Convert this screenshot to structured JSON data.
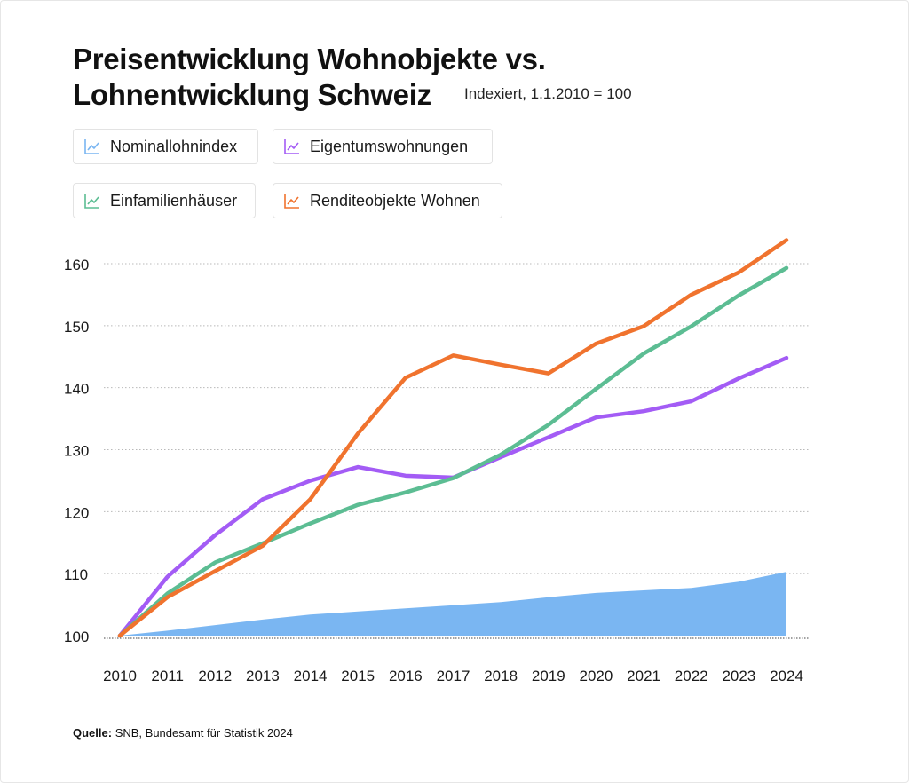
{
  "title_line1": "Preisentwicklung Wohnobjekte vs.",
  "title_line2": "Lohnentwicklung Schweiz",
  "subtitle": "Indexiert, 1.1.2010 = 100",
  "legend": [
    {
      "label": "Nominallohnindex",
      "color": "#7ab6f2",
      "icon": "line-chart-icon"
    },
    {
      "label": "Eigentumswohnungen",
      "color": "#a35cf5",
      "icon": "line-chart-icon"
    },
    {
      "label": "Einfamilienhäuser",
      "color": "#5cbd93",
      "icon": "line-chart-icon"
    },
    {
      "label": "Renditeobjekte Wohnen",
      "color": "#f0732e",
      "icon": "line-chart-icon"
    }
  ],
  "source_label": "Quelle:",
  "source_text": "SNB, Bundesamt für Statistik 2024",
  "chart_data": {
    "type": "line",
    "title": "Preisentwicklung Wohnobjekte vs. Lohnentwicklung Schweiz",
    "subtitle": "Indexiert, 1.1.2010 = 100",
    "xlabel": "",
    "ylabel": "",
    "x": [
      "2010",
      "2011",
      "2012",
      "2013",
      "2014",
      "2015",
      "2016",
      "2017",
      "2018",
      "2019",
      "2020",
      "2021",
      "2022",
      "2023",
      "2024"
    ],
    "ylim": [
      100,
      160
    ],
    "yticks": [
      100,
      110,
      120,
      130,
      140,
      150,
      160
    ],
    "grid": "horizontal-dotted",
    "legend_position": "top-left",
    "series": [
      {
        "name": "Nominallohnindex",
        "render": "area",
        "color": "#7ab6f2",
        "values": [
          100,
          100.8,
          101.7,
          102.6,
          103.4,
          103.9,
          104.4,
          104.9,
          105.4,
          106.2,
          106.9,
          107.3,
          107.7,
          108.7,
          110.3
        ]
      },
      {
        "name": "Eigentumswohnungen",
        "render": "line",
        "color": "#a35cf5",
        "values": [
          100,
          109.5,
          116.2,
          122.0,
          125.0,
          127.2,
          125.8,
          125.5,
          128.8,
          132.0,
          135.2,
          136.2,
          137.8,
          141.5,
          144.8
        ]
      },
      {
        "name": "Einfamilienhäuser",
        "render": "line",
        "color": "#5cbd93",
        "values": [
          100,
          106.8,
          111.8,
          114.9,
          118.1,
          121.1,
          123.1,
          125.4,
          129.2,
          134.0,
          139.8,
          145.5,
          149.9,
          154.9,
          159.3
        ]
      },
      {
        "name": "Renditeobjekte Wohnen",
        "render": "line",
        "color": "#f0732e",
        "values": [
          100,
          106.2,
          110.4,
          114.5,
          122.0,
          132.6,
          141.6,
          145.2,
          143.7,
          142.3,
          147.1,
          149.9,
          155.0,
          158.6,
          163.8
        ]
      }
    ]
  }
}
